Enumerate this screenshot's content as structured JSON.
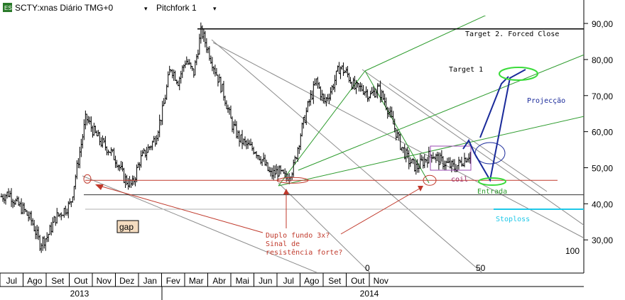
{
  "header": {
    "symbol": "SCTY:xnas Diário TMG+0",
    "tool": "Pitchfork 1"
  },
  "colors": {
    "candles": "#000000",
    "pitchfork_grey": "#8c8c8c",
    "pitchfork_green": "#2e9c2e",
    "target_line": "#000000",
    "support": "#c0392b",
    "stoploss": "#1ec8e8",
    "projection": "#1a2a9a",
    "entry_ellipse": "#3adb3a",
    "coil_box": "#9a4ab0"
  },
  "chart_data": {
    "type": "candlestick",
    "y_axis": {
      "range": [
        21,
        96.5
      ],
      "ticks": [
        "30,00",
        "40,00",
        "50,00",
        "60,00",
        "70,00",
        "80,00",
        "90,00"
      ],
      "tick_values": [
        30,
        40,
        50,
        60,
        70,
        80,
        90
      ],
      "position": "right"
    },
    "x_axis": {
      "months": [
        "Jul",
        "Ago",
        "Set",
        "Out",
        "Nov",
        "Dez",
        "Jan",
        "Fev",
        "Mar",
        "Abr",
        "Mai",
        "Jun",
        "Jul",
        "Ago",
        "Set",
        "Out",
        "Nov"
      ],
      "years": [
        "2013",
        "2014"
      ]
    },
    "price_path": [
      42,
      43,
      40,
      38,
      35,
      29,
      31,
      36,
      38,
      40,
      52,
      64,
      60,
      57,
      55,
      52,
      47,
      45,
      52,
      55,
      58,
      66,
      78,
      74,
      80,
      76,
      88,
      82,
      76,
      70,
      62,
      58,
      56,
      55,
      52,
      48,
      49,
      47,
      50,
      60,
      68,
      74,
      68,
      72,
      78,
      76,
      72,
      72,
      70,
      72,
      68,
      62,
      56,
      52,
      50,
      52,
      54,
      52,
      51,
      50,
      52,
      54
    ],
    "levels": {
      "target_2": 88.5,
      "support": 46.5,
      "neckline": 42.5,
      "stoploss": 38.5
    },
    "fib_labels": [
      "0",
      "50",
      "100"
    ],
    "annotations": {
      "target_2": "Target 2. Forced Close",
      "target_1": "Target 1",
      "projection": "Projecção",
      "coil": "coil",
      "entry": "Entrada",
      "stoploss": "Stoploss",
      "gap": "gap",
      "double_bottom": [
        "Duplo fundo 3x?",
        "Sinal de",
        "resistência forte?"
      ]
    }
  }
}
